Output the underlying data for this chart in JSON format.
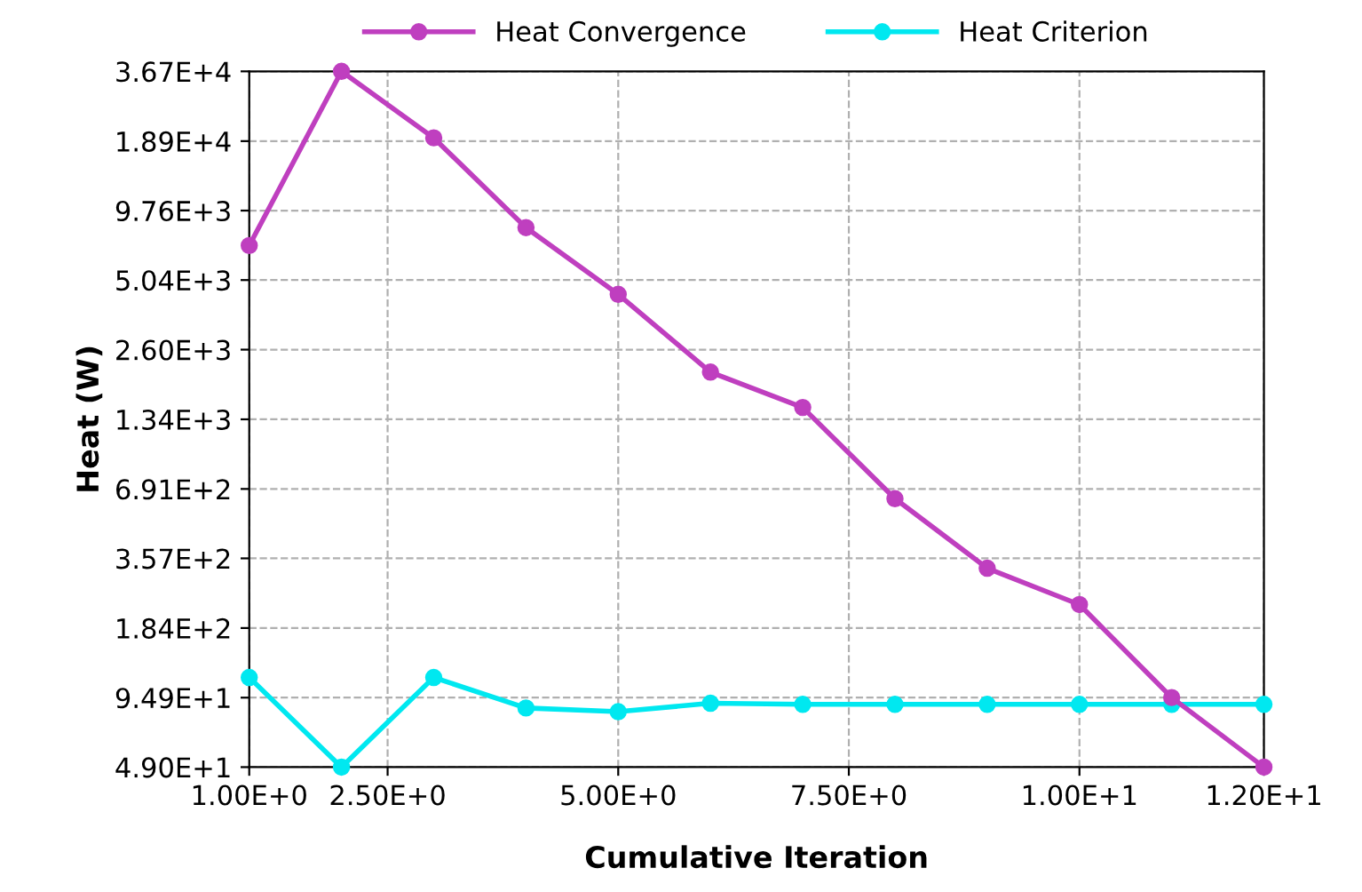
{
  "chart_data": {
    "type": "line",
    "xlabel": "Cumulative Iteration",
    "ylabel": "Heat (W)",
    "x": [
      1,
      2,
      3,
      4,
      5,
      6,
      7,
      8,
      9,
      10,
      11,
      12
    ],
    "series": [
      {
        "name": "Heat Convergence",
        "color": "#bf3fbf",
        "values": [
          7000,
          36700,
          19500,
          8300,
          4400,
          2100,
          1500,
          630,
          325,
          230,
          95,
          49
        ]
      },
      {
        "name": "Heat Criterion",
        "color": "#00e8f0",
        "values": [
          115,
          49,
          115,
          86,
          83,
          90,
          89,
          89,
          89,
          89,
          89,
          89
        ]
      }
    ],
    "log": "y",
    "xlim": [
      1,
      12
    ],
    "ylim": [
      49,
      36700
    ],
    "xticks": [
      {
        "value": 1,
        "label": "1.00E+0"
      },
      {
        "value": 2.5,
        "label": "2.50E+0"
      },
      {
        "value": 5,
        "label": "5.00E+0"
      },
      {
        "value": 7.5,
        "label": "7.50E+0"
      },
      {
        "value": 10,
        "label": "1.00E+1"
      },
      {
        "value": 12,
        "label": "1.20E+1"
      }
    ],
    "yticks": [
      {
        "value": 49,
        "label": "4.90E+1"
      },
      {
        "value": 94.9,
        "label": "9.49E+1"
      },
      {
        "value": 184,
        "label": "1.84E+2"
      },
      {
        "value": 357,
        "label": "3.57E+2"
      },
      {
        "value": 691,
        "label": "6.91E+2"
      },
      {
        "value": 1340,
        "label": "1.34E+3"
      },
      {
        "value": 2600,
        "label": "2.60E+3"
      },
      {
        "value": 5040,
        "label": "5.04E+3"
      },
      {
        "value": 9760,
        "label": "9.76E+3"
      },
      {
        "value": 18900,
        "label": "1.89E+4"
      },
      {
        "value": 36700,
        "label": "3.67E+4"
      }
    ],
    "grid": true,
    "legend": "top",
    "line_style": "solid",
    "marker": "circle"
  }
}
